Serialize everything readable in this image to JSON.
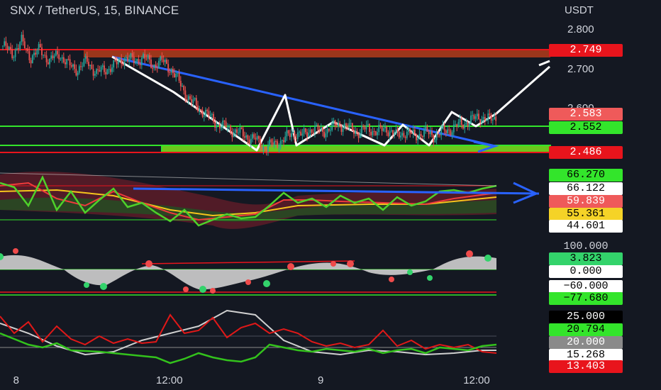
{
  "header": {
    "title": "SNX / TetherUS, 15, BINANCE",
    "currency": "USDT"
  },
  "price_axis": {
    "ticks": [
      {
        "label": "2.800",
        "y": 2.8
      },
      {
        "label": "2.700",
        "y": 2.7
      },
      {
        "label": "2.600",
        "y": 2.6
      }
    ]
  },
  "x_axis": {
    "ticks": [
      {
        "label": "8",
        "pos": 0.035
      },
      {
        "label": "12:00",
        "pos": 0.3
      },
      {
        "label": "9",
        "pos": 0.6
      },
      {
        "label": "12:00",
        "pos": 0.87
      }
    ]
  },
  "price_tags": [
    {
      "label": "2.749",
      "value": 2.749,
      "bg": "#e8141c",
      "fg": "#ffffff"
    },
    {
      "label": "2.583",
      "value": 2.583,
      "bg": "#ef5a5a",
      "fg": "#ffffff"
    },
    {
      "label": "2.552",
      "value": 2.552,
      "bg": "#33e52b",
      "fg": "#000000"
    },
    {
      "label": "2.486",
      "value": 2.486,
      "bg": "#e8141c",
      "fg": "#ffffff"
    }
  ],
  "ind1_tags": [
    {
      "label": "66.270",
      "bg": "#33e52b",
      "fg": "#000000"
    },
    {
      "label": "66.122",
      "bg": "#ffffff",
      "fg": "#000000"
    },
    {
      "label": "59.839",
      "bg": "#ef5a5a",
      "fg": "#ffffff"
    },
    {
      "label": "55.361",
      "bg": "#f5d327",
      "fg": "#000000"
    },
    {
      "label": "44.601",
      "bg": "#ffffff",
      "fg": "#000000"
    }
  ],
  "ind2_tags": [
    {
      "label": "100.000",
      "bg": "#141822",
      "fg": "#d1d4dc"
    },
    {
      "label": "3.823",
      "bg": "#33d36b",
      "fg": "#000000"
    },
    {
      "label": "0.000",
      "bg": "#ffffff",
      "fg": "#000000"
    },
    {
      "label": "−60.000",
      "bg": "#ffffff",
      "fg": "#000000"
    },
    {
      "label": "−77.680",
      "bg": "#33e52b",
      "fg": "#000000"
    }
  ],
  "ind3_tags": [
    {
      "label": "25.000",
      "bg": "#000000",
      "fg": "#ffffff"
    },
    {
      "label": "20.794",
      "bg": "#33e52b",
      "fg": "#000000"
    },
    {
      "label": "20.000",
      "bg": "#8a8a8a",
      "fg": "#ffffff"
    },
    {
      "label": "15.268",
      "bg": "#ffffff",
      "fg": "#000000"
    },
    {
      "label": "13.403",
      "bg": "#e8141c",
      "fg": "#ffffff"
    }
  ],
  "chart_data": {
    "type": "candlestick",
    "symbol": "SNX / TetherUS",
    "interval": "15",
    "exchange": "BINANCE",
    "y_range": [
      2.47,
      2.84
    ],
    "close_path": [
      2.76,
      2.74,
      2.77,
      2.73,
      2.75,
      2.72,
      2.74,
      2.71,
      2.7,
      2.72,
      2.69,
      2.7,
      2.71,
      2.73,
      2.72,
      2.73,
      2.71,
      2.72,
      2.7,
      2.66,
      2.62,
      2.6,
      2.58,
      2.56,
      2.55,
      2.54,
      2.53,
      2.52,
      2.5,
      2.51,
      2.52,
      2.54,
      2.53,
      2.55,
      2.54,
      2.55,
      2.56,
      2.55,
      2.54,
      2.55,
      2.54,
      2.55,
      2.53,
      2.54,
      2.53,
      2.54,
      2.53,
      2.54,
      2.55,
      2.56,
      2.57,
      2.58,
      2.57,
      2.58
    ],
    "levels": [
      {
        "value": 2.749,
        "color": "#e8141c"
      },
      {
        "value": 2.552,
        "color": "#33e52b"
      },
      {
        "value": 2.486,
        "color": "#e8141c"
      }
    ]
  },
  "colors": {
    "up": "#26a69a",
    "down": "#ef5350",
    "red": "#e8141c",
    "green": "#33e52b",
    "blue": "#2962ff",
    "white": "#ffffff"
  }
}
